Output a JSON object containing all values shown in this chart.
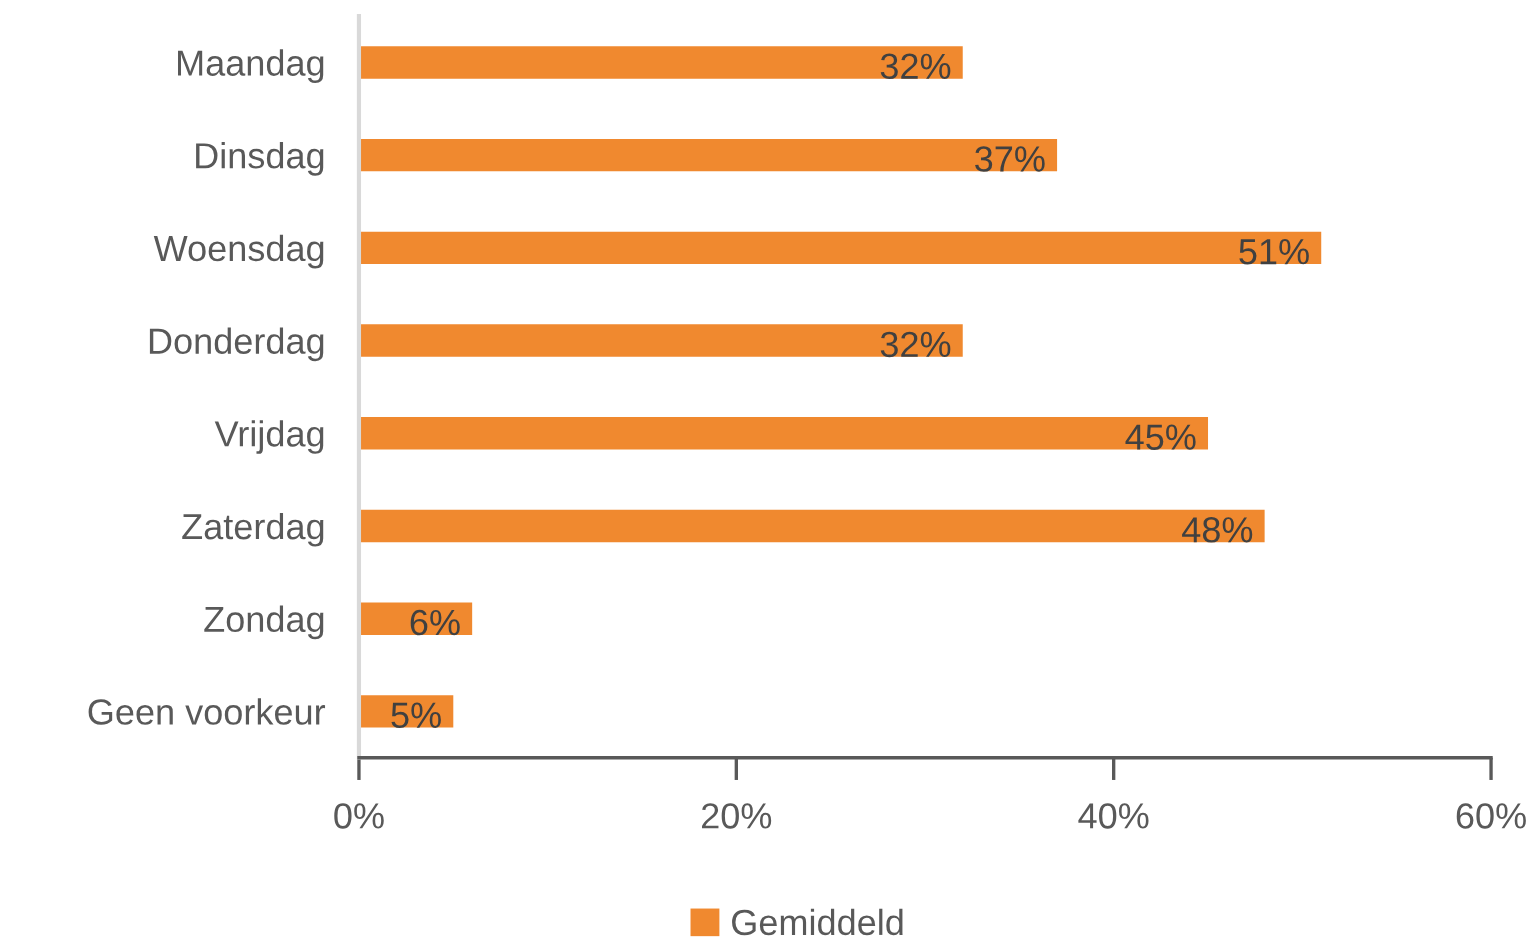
{
  "chart_data": {
    "type": "bar",
    "orientation": "horizontal",
    "categories": [
      "Maandag",
      "Dinsdag",
      "Woensdag",
      "Donderdag",
      "Vrijdag",
      "Zaterdag",
      "Zondag",
      "Geen voorkeur"
    ],
    "series": [
      {
        "name": "Gemiddeld",
        "color": "#f0892f",
        "values": [
          32,
          37,
          51,
          32,
          45,
          48,
          6,
          5
        ],
        "value_labels": [
          "32%",
          "37%",
          "51%",
          "32%",
          "45%",
          "48%",
          "6%",
          "5%"
        ]
      }
    ],
    "xlim": [
      0,
      60
    ],
    "xticks": [
      {
        "value": 0,
        "label": "0%"
      },
      {
        "value": 20,
        "label": "20%"
      },
      {
        "value": 40,
        "label": "40%"
      },
      {
        "value": 60,
        "label": "60%"
      }
    ],
    "grid": false,
    "legend": "bottom"
  }
}
